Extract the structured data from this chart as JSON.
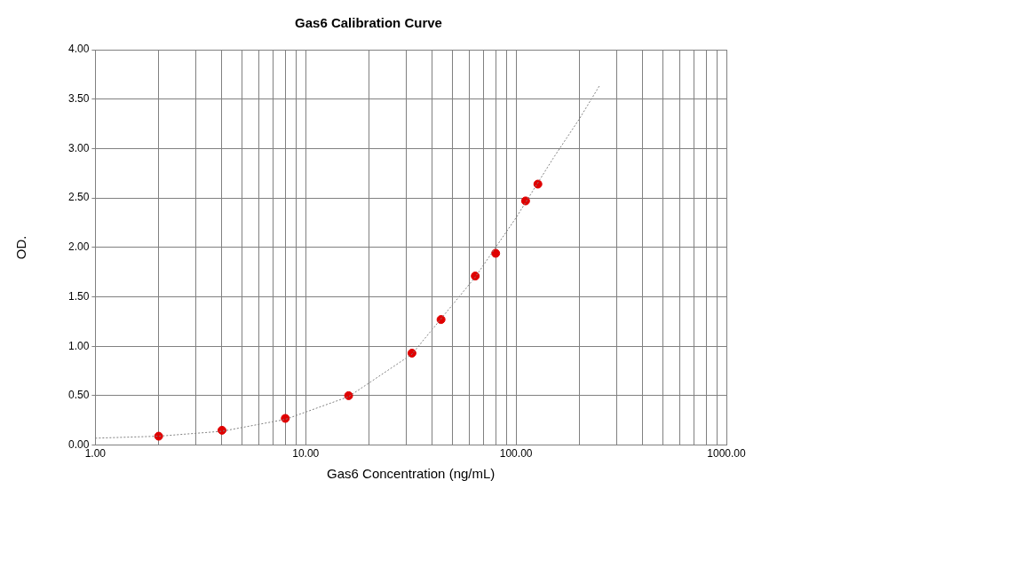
{
  "chart_data": {
    "type": "scatter",
    "title": "Gas6 Calibration Curve",
    "xlabel": "Gas6 Concentration (ng/mL)",
    "ylabel": "OD.",
    "log": "x",
    "grid": true,
    "legend": false,
    "xlim": [
      1,
      1000
    ],
    "ylim": [
      0,
      4
    ],
    "xticks": [
      {
        "value": 1,
        "label": "1.00"
      },
      {
        "value": 2,
        "label": null
      },
      {
        "value": 3,
        "label": null
      },
      {
        "value": 4,
        "label": null
      },
      {
        "value": 5,
        "label": null
      },
      {
        "value": 6,
        "label": null
      },
      {
        "value": 7,
        "label": null
      },
      {
        "value": 8,
        "label": null
      },
      {
        "value": 9,
        "label": null
      },
      {
        "value": 10,
        "label": "10.00"
      },
      {
        "value": 20,
        "label": null
      },
      {
        "value": 30,
        "label": null
      },
      {
        "value": 40,
        "label": null
      },
      {
        "value": 50,
        "label": null
      },
      {
        "value": 60,
        "label": null
      },
      {
        "value": 70,
        "label": null
      },
      {
        "value": 80,
        "label": null
      },
      {
        "value": 90,
        "label": null
      },
      {
        "value": 100,
        "label": "100.00"
      },
      {
        "value": 200,
        "label": null
      },
      {
        "value": 300,
        "label": null
      },
      {
        "value": 400,
        "label": null
      },
      {
        "value": 500,
        "label": null
      },
      {
        "value": 600,
        "label": null
      },
      {
        "value": 700,
        "label": null
      },
      {
        "value": 800,
        "label": null
      },
      {
        "value": 900,
        "label": null
      },
      {
        "value": 1000,
        "label": "1000.00"
      }
    ],
    "yticks": [
      {
        "value": 0,
        "label": "0.00"
      },
      {
        "value": 0.5,
        "label": "0.50"
      },
      {
        "value": 1,
        "label": "1.00"
      },
      {
        "value": 1.5,
        "label": "1.50"
      },
      {
        "value": 2,
        "label": "2.00"
      },
      {
        "value": 2.5,
        "label": "2.50"
      },
      {
        "value": 3,
        "label": "3.00"
      },
      {
        "value": 3.5,
        "label": "3.50"
      },
      {
        "value": 4,
        "label": "4.00"
      }
    ],
    "series": [
      {
        "type": "line",
        "color": "#808080",
        "marker": "none",
        "line_style": "dotted",
        "x": [
          1,
          2,
          4,
          8,
          16,
          32,
          64,
          100,
          150,
          200,
          250
        ],
        "values": [
          0.07,
          0.09,
          0.14,
          0.26,
          0.49,
          0.92,
          1.7,
          2.3,
          2.9,
          3.3,
          3.64
        ]
      },
      {
        "type": "scatter",
        "color": "#e00000",
        "marker": "circle",
        "x": [
          2,
          4,
          8,
          16,
          32,
          44,
          64,
          80,
          111,
          127
        ],
        "values": [
          0.09,
          0.15,
          0.27,
          0.5,
          0.93,
          1.27,
          1.71,
          1.94,
          2.47,
          2.64
        ]
      }
    ]
  }
}
